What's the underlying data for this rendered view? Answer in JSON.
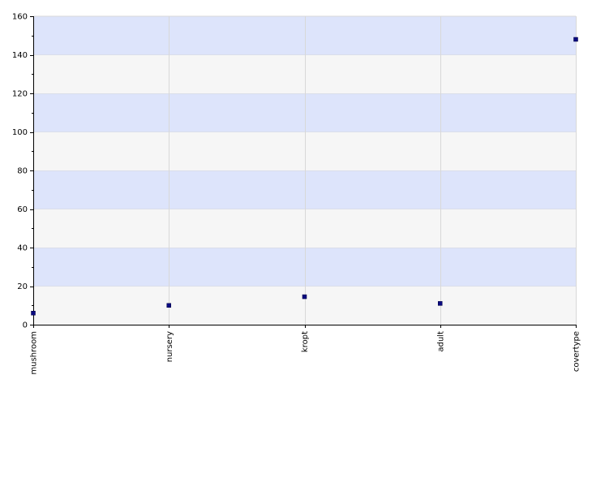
{
  "chart_data": {
    "type": "scatter",
    "title": "",
    "xlabel": "",
    "ylabel": "",
    "categories": [
      "mushroom",
      "nursery",
      "kropt",
      "adult",
      "covertype"
    ],
    "values": [
      6,
      10,
      14.5,
      11,
      148
    ],
    "ylim": [
      0,
      160
    ],
    "yticks": [
      0,
      20,
      40,
      60,
      80,
      100,
      120,
      140,
      160
    ],
    "ytick_labels": [
      "0",
      "20",
      "40",
      "60",
      "80",
      "100",
      "120",
      "140",
      "160"
    ],
    "grid": true,
    "colors": {
      "band_primary": "#dde4fb",
      "band_secondary": "#f6f6f6",
      "grid": "#d8d8d8",
      "axis": "#000000",
      "marker": "#0a0a80"
    }
  }
}
